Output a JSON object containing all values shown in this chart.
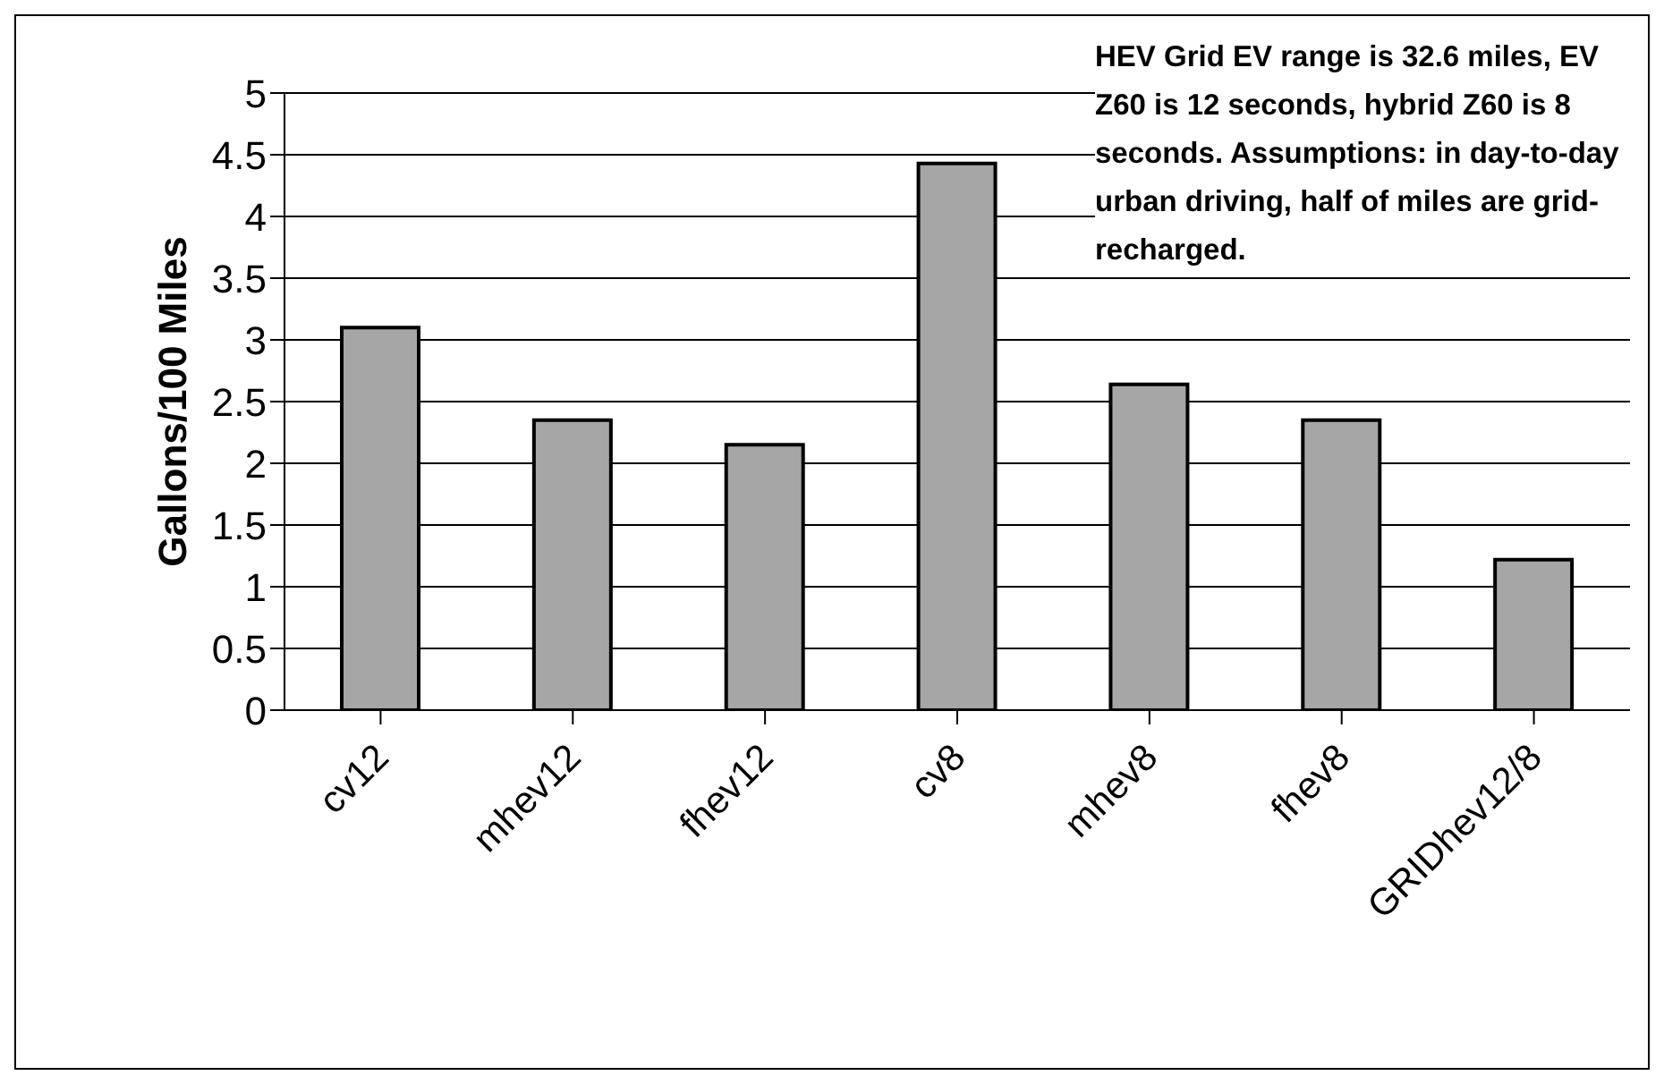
{
  "chart_data": {
    "type": "bar",
    "ylabel": "Gallons/100 Miles",
    "categories": [
      "cv12",
      "mhev12",
      "fhev12",
      "cv8",
      "mhev8",
      "fhev8",
      "GRIDhev12/8"
    ],
    "values": [
      3.1,
      2.35,
      2.15,
      4.43,
      2.64,
      2.35,
      1.22
    ],
    "color": "#a6a6a6",
    "ylim": [
      0,
      5
    ],
    "yticks": [
      0,
      0.5,
      1,
      1.5,
      2,
      2.5,
      3,
      3.5,
      4,
      4.5,
      5
    ],
    "grid": "y",
    "annotations": [
      "HEV Grid EV range is 32.6 miles, EV Z60 is 12 seconds, hybrid Z60 is 8 seconds. Assumptions: in day-to-day urban driving, half of miles are grid-recharged."
    ]
  }
}
